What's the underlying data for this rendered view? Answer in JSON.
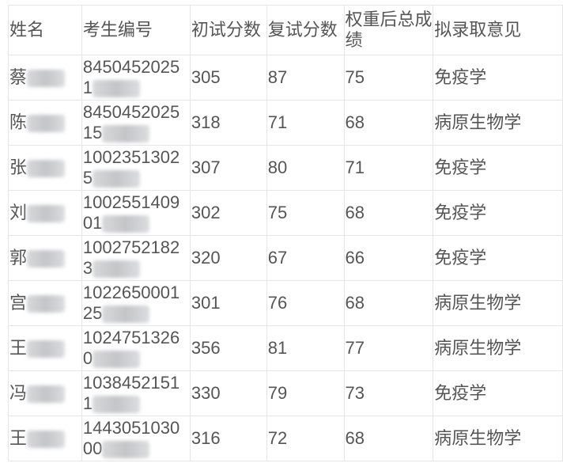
{
  "headers": [
    "姓名",
    "考生编号",
    "初试分数",
    "复试分数",
    "权重后总成绩",
    "拟录取意见"
  ],
  "rows": [
    {
      "name": "蔡",
      "id_line1": "8450452025",
      "id_line2": "1",
      "prelim": "305",
      "retest": "87",
      "total": "75",
      "decision": "免疫学"
    },
    {
      "name": "陈",
      "id_line1": "8450452025",
      "id_line2": "15",
      "prelim": "318",
      "retest": "71",
      "total": "68",
      "decision": "病原生物学"
    },
    {
      "name": "张",
      "id_line1": "1002351302",
      "id_line2": "5",
      "prelim": "307",
      "retest": "80",
      "total": "71",
      "decision": "免疫学"
    },
    {
      "name": "刘",
      "id_line1": "1002551409",
      "id_line2": "01",
      "prelim": "302",
      "retest": "75",
      "total": "68",
      "decision": "免疫学"
    },
    {
      "name": "郭",
      "id_line1": "1002752182",
      "id_line2": "3",
      "prelim": "320",
      "retest": "67",
      "total": "66",
      "decision": "免疫学"
    },
    {
      "name": "宫",
      "id_line1": "1022650001",
      "id_line2": "25",
      "prelim": "301",
      "retest": "76",
      "total": "68",
      "decision": "病原生物学"
    },
    {
      "name": "王",
      "id_line1": "1024751326",
      "id_line2": "0",
      "prelim": "356",
      "retest": "81",
      "total": "77",
      "decision": "病原生物学"
    },
    {
      "name": "冯",
      "id_line1": "1038452151",
      "id_line2": "1",
      "prelim": "330",
      "retest": "79",
      "total": "73",
      "decision": "免疫学"
    },
    {
      "name": "王",
      "id_line1": "1443051030",
      "id_line2": "00",
      "prelim": "316",
      "retest": "72",
      "total": "68",
      "decision": "病原生物学"
    }
  ]
}
